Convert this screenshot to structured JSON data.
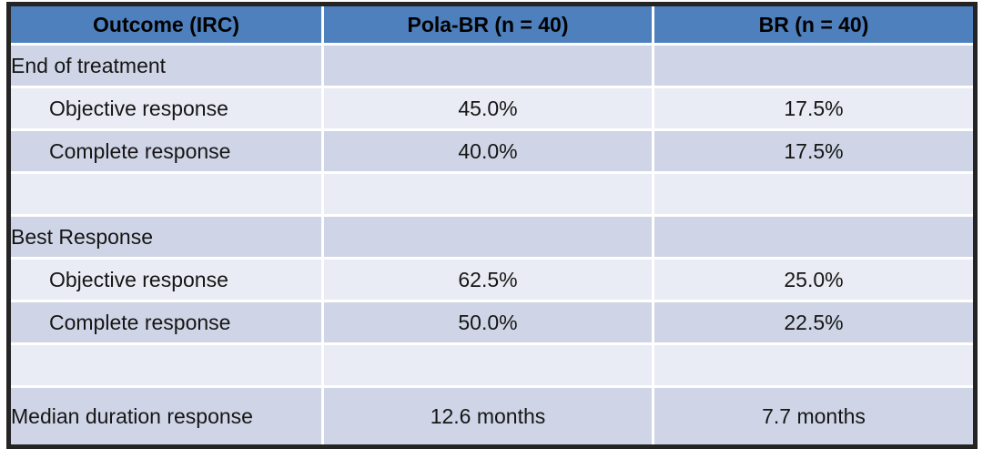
{
  "chart_data": {
    "type": "table",
    "title": "",
    "columns": [
      "Outcome (IRC)",
      "Pola-BR (n = 40)",
      "BR (n = 40)"
    ],
    "rows": [
      {
        "label": "End of treatment",
        "pola": "",
        "br": ""
      },
      {
        "label": "Objective response",
        "pola": "45.0%",
        "br": "17.5%"
      },
      {
        "label": "Complete response",
        "pola": "40.0%",
        "br": "17.5%"
      },
      {
        "label": "",
        "pola": "",
        "br": ""
      },
      {
        "label": "Best Response",
        "pola": "",
        "br": ""
      },
      {
        "label": "Objective response",
        "pola": "62.5%",
        "br": "25.0%"
      },
      {
        "label": "Complete response",
        "pola": "50.0%",
        "br": "22.5%"
      },
      {
        "label": "",
        "pola": "",
        "br": ""
      },
      {
        "label": "Median duration response",
        "pola": "12.6 months",
        "br": "7.7 months"
      }
    ],
    "layout": {
      "banded_rows": true,
      "header_position": "top",
      "label_column_align": "left",
      "value_columns_align": "center"
    }
  },
  "colors": {
    "header_bg": "#4d80bd",
    "band_dark": "#cfd5e6",
    "band_light": "#e9ecf4",
    "outer_border": "#242424",
    "grid_line": "#ffffff",
    "text": "#161616"
  }
}
